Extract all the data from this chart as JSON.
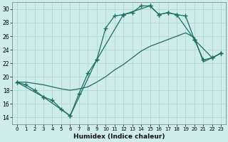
{
  "xlabel": "Humidex (Indice chaleur)",
  "xlim": [
    -0.5,
    23.5
  ],
  "ylim": [
    13,
    31
  ],
  "yticks": [
    14,
    16,
    18,
    20,
    22,
    24,
    26,
    28,
    30
  ],
  "xticks": [
    0,
    1,
    2,
    3,
    4,
    5,
    6,
    7,
    8,
    9,
    10,
    11,
    12,
    13,
    14,
    15,
    16,
    17,
    18,
    19,
    20,
    21,
    22,
    23
  ],
  "background_color": "#ceecea",
  "grid_color": "#b2d8d4",
  "line_color": "#1e6e62",
  "line1_x": [
    0,
    1,
    2,
    3,
    4,
    5,
    6,
    7,
    8,
    9,
    10,
    11,
    12,
    13,
    14,
    15,
    16,
    17,
    18,
    19,
    20,
    21,
    22,
    23
  ],
  "line1_y": [
    19.2,
    18.8,
    18.0,
    17.0,
    16.5,
    15.2,
    14.2,
    17.5,
    20.5,
    22.5,
    27.2,
    29.0,
    29.2,
    29.5,
    30.5,
    30.5,
    29.2,
    29.5,
    29.2,
    29.0,
    25.5,
    22.5,
    22.8,
    23.5
  ],
  "line2_x": [
    0,
    1,
    2,
    3,
    4,
    5,
    6,
    7,
    8,
    9,
    10,
    11,
    12,
    13,
    14,
    15,
    16,
    17,
    18,
    19,
    20,
    21,
    22,
    23
  ],
  "line2_y": [
    19.2,
    19.2,
    19.0,
    18.8,
    18.5,
    18.2,
    18.0,
    18.2,
    18.5,
    19.2,
    20.0,
    21.0,
    21.8,
    22.8,
    23.8,
    24.5,
    25.0,
    25.5,
    26.0,
    26.5,
    25.8,
    22.2,
    22.8,
    23.5
  ],
  "line3_x": [
    0,
    3,
    6,
    9,
    12,
    15,
    16,
    17,
    18,
    20,
    22,
    23
  ],
  "line3_y": [
    19.2,
    17.0,
    14.2,
    22.5,
    29.2,
    30.5,
    29.2,
    29.5,
    29.2,
    25.5,
    22.8,
    23.5
  ]
}
